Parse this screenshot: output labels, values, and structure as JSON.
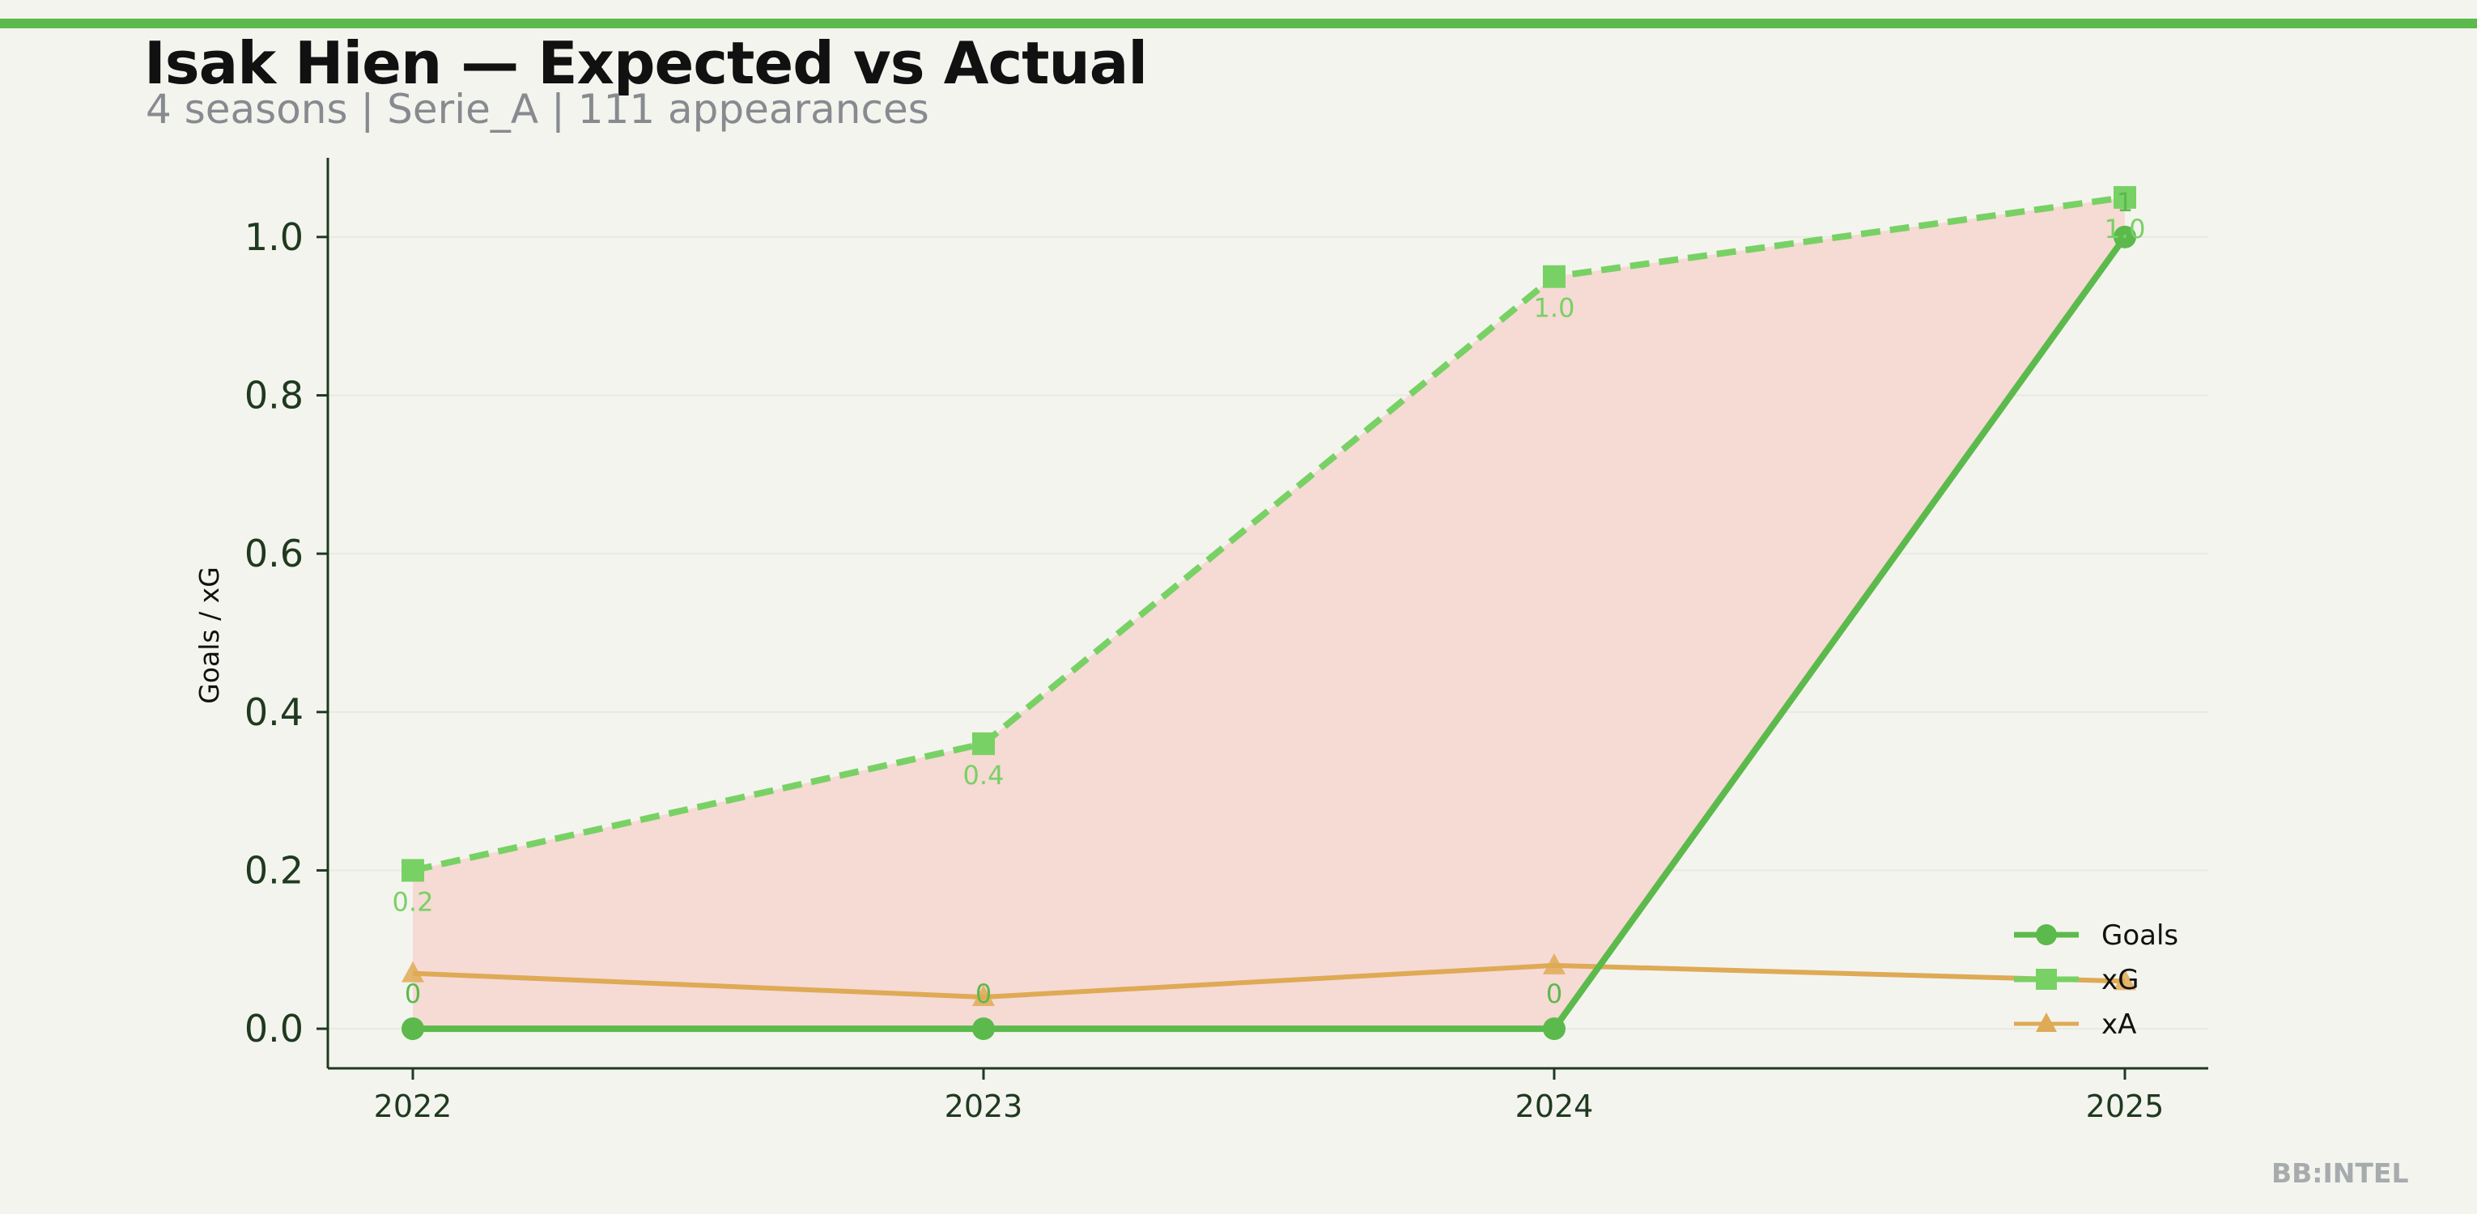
{
  "header": {
    "title": "Isak Hien — Expected vs Actual",
    "subtitle": "4 seasons | Serie_A | 111 appearances"
  },
  "watermark": "BB:INTEL",
  "colors": {
    "background": "#f4f4ef",
    "accent_bar": "#5bba4b",
    "goals": "#5bba4b",
    "xg": "#78d164",
    "xa": "#deaa55",
    "fill": "#f6d8d2",
    "axis": "#1f3a1f"
  },
  "chart_data": {
    "type": "line",
    "title": "",
    "xlabel": "",
    "ylabel": "Goals / xG",
    "x": [
      2022,
      2023,
      2024,
      2025
    ],
    "ylim": [
      -0.05,
      1.1
    ],
    "y_ticks": [
      0.0,
      0.2,
      0.4,
      0.6,
      0.8,
      1.0
    ],
    "y_tick_labels": [
      "0.0",
      "0.2",
      "0.4",
      "0.6",
      "0.8",
      "1.0"
    ],
    "x_tick_labels": [
      "2022",
      "2023",
      "2024",
      "2025"
    ],
    "grid": "horizontal, faint",
    "legend_position": "lower-right",
    "series": [
      {
        "name": "Goals",
        "values": [
          0,
          0,
          0,
          1
        ],
        "style": "solid",
        "marker": "circle",
        "labels": [
          "0",
          "0",
          "0",
          "1"
        ]
      },
      {
        "name": "xG",
        "values": [
          0.2,
          0.36,
          0.95,
          1.05
        ],
        "style": "dashed",
        "marker": "square",
        "labels": [
          "0.2",
          "0.4",
          "1.0",
          "1.0"
        ]
      },
      {
        "name": "xA",
        "values": [
          0.07,
          0.04,
          0.08,
          0.06
        ],
        "style": "solid",
        "marker": "triangle"
      }
    ],
    "shaded_region": "between Goals and xG"
  }
}
